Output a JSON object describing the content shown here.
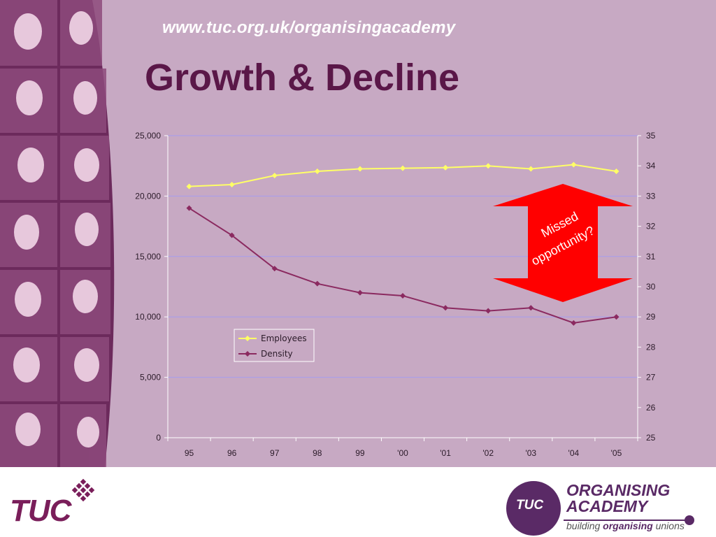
{
  "header": {
    "url": "www.tuc.org.uk/organisingacademy",
    "title": "Growth & Decline"
  },
  "annotation": {
    "text_line1": "Missed",
    "text_line2": "opportunity?",
    "color": "#ff0000"
  },
  "footer": {
    "tuc_logo_text": "TUC",
    "oa_badge_text": "TUC",
    "oa_title_line1": "ORGANISING",
    "oa_title_line2": "ACADEMY",
    "oa_tagline_pre": "building ",
    "oa_tagline_bold": "organising",
    "oa_tagline_post": " unions"
  },
  "colors": {
    "slide_bg": "#c7a9c3",
    "employees": "#ffff66",
    "density": "#8b2a60",
    "title": "#5a1748"
  },
  "chart_data": {
    "type": "line",
    "categories": [
      "95",
      "96",
      "97",
      "98",
      "99",
      "'00",
      "'01",
      "'02",
      "'03",
      "'04",
      "'05"
    ],
    "series": [
      {
        "name": "Employees",
        "axis": "left",
        "values": [
          20800,
          20950,
          21700,
          22050,
          22250,
          22300,
          22350,
          22500,
          22250,
          22600,
          22050
        ]
      },
      {
        "name": "Density",
        "axis": "right",
        "values": [
          32.6,
          31.7,
          30.6,
          30.1,
          29.8,
          29.7,
          29.3,
          29.2,
          29.3,
          28.8,
          29.0
        ]
      }
    ],
    "y_left": {
      "ylim": [
        0,
        25000
      ],
      "ticks": [
        "0",
        "5,000",
        "10,000",
        "15,000",
        "20,000",
        "25,000"
      ]
    },
    "y_right": {
      "ylim": [
        25,
        35
      ],
      "ticks": [
        "25",
        "26",
        "27",
        "28",
        "29",
        "30",
        "31",
        "32",
        "33",
        "34",
        "35"
      ]
    },
    "grid": true,
    "legend": "lower-left"
  }
}
